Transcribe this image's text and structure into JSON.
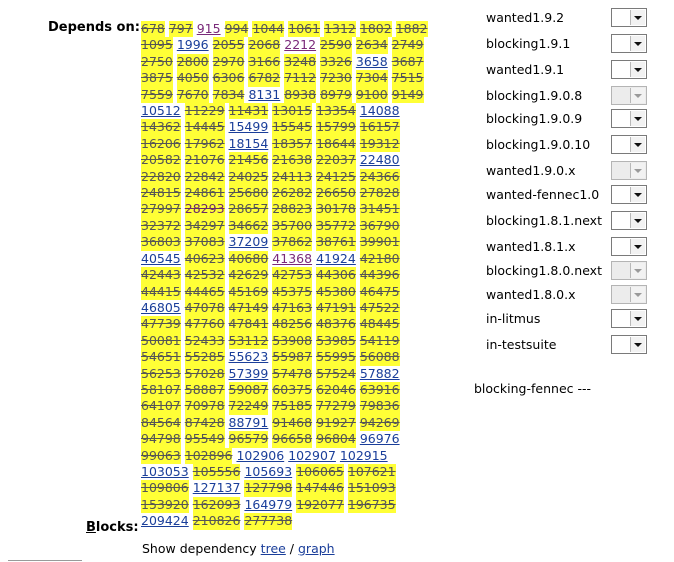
{
  "depends": {
    "label": "Depends on:",
    "bugs": [
      {
        "id": "678",
        "closed": true
      },
      {
        "id": "797",
        "closed": true
      },
      {
        "id": "915",
        "closed": false,
        "visited": true
      },
      {
        "id": "994",
        "closed": true
      },
      {
        "id": "1044",
        "closed": true
      },
      {
        "id": "1061",
        "closed": true
      },
      {
        "id": "1312",
        "closed": true
      },
      {
        "id": "1802",
        "closed": true
      },
      {
        "id": "1882",
        "closed": true
      },
      {
        "id": "1095",
        "closed": true
      },
      {
        "id": "1996",
        "closed": false
      },
      {
        "id": "2055",
        "closed": true
      },
      {
        "id": "2068",
        "closed": true
      },
      {
        "id": "2212",
        "closed": false,
        "visited": true
      },
      {
        "id": "2590",
        "closed": true
      },
      {
        "id": "2634",
        "closed": true
      },
      {
        "id": "2749",
        "closed": true
      },
      {
        "id": "2750",
        "closed": true
      },
      {
        "id": "2800",
        "closed": true
      },
      {
        "id": "2970",
        "closed": true
      },
      {
        "id": "3166",
        "closed": true
      },
      {
        "id": "3248",
        "closed": true
      },
      {
        "id": "3326",
        "closed": true
      },
      {
        "id": "3658",
        "closed": false
      },
      {
        "id": "3687",
        "closed": true
      },
      {
        "id": "3875",
        "closed": true
      },
      {
        "id": "4050",
        "closed": true
      },
      {
        "id": "6306",
        "closed": true
      },
      {
        "id": "6782",
        "closed": true
      },
      {
        "id": "7112",
        "closed": true
      },
      {
        "id": "7230",
        "closed": true
      },
      {
        "id": "7304",
        "closed": true
      },
      {
        "id": "7515",
        "closed": true
      },
      {
        "id": "7559",
        "closed": true
      },
      {
        "id": "7670",
        "closed": true
      },
      {
        "id": "7834",
        "closed": true
      },
      {
        "id": "8131",
        "closed": false
      },
      {
        "id": "8938",
        "closed": true
      },
      {
        "id": "8979",
        "closed": true
      },
      {
        "id": "9100",
        "closed": true
      },
      {
        "id": "9149",
        "closed": true
      },
      {
        "id": "10512",
        "closed": false
      },
      {
        "id": "11229",
        "closed": true
      },
      {
        "id": "11431",
        "closed": true
      },
      {
        "id": "13015",
        "closed": true
      },
      {
        "id": "13354",
        "closed": true
      },
      {
        "id": "14088",
        "closed": false
      },
      {
        "id": "14362",
        "closed": true
      },
      {
        "id": "14445",
        "closed": true
      },
      {
        "id": "15499",
        "closed": false
      },
      {
        "id": "15545",
        "closed": true
      },
      {
        "id": "15799",
        "closed": true
      },
      {
        "id": "16157",
        "closed": true
      },
      {
        "id": "16206",
        "closed": true
      },
      {
        "id": "17962",
        "closed": true
      },
      {
        "id": "18154",
        "closed": false
      },
      {
        "id": "18357",
        "closed": true
      },
      {
        "id": "18644",
        "closed": true
      },
      {
        "id": "19312",
        "closed": true
      },
      {
        "id": "20582",
        "closed": true
      },
      {
        "id": "21076",
        "closed": true
      },
      {
        "id": "21456",
        "closed": true
      },
      {
        "id": "21638",
        "closed": true
      },
      {
        "id": "22037",
        "closed": true
      },
      {
        "id": "22480",
        "closed": false
      },
      {
        "id": "22820",
        "closed": true
      },
      {
        "id": "22842",
        "closed": true
      },
      {
        "id": "24025",
        "closed": true
      },
      {
        "id": "24113",
        "closed": true
      },
      {
        "id": "24125",
        "closed": true
      },
      {
        "id": "24366",
        "closed": true
      },
      {
        "id": "24815",
        "closed": true
      },
      {
        "id": "24861",
        "closed": true
      },
      {
        "id": "25680",
        "closed": true
      },
      {
        "id": "26282",
        "closed": true
      },
      {
        "id": "26650",
        "closed": true
      },
      {
        "id": "27828",
        "closed": true
      },
      {
        "id": "27997",
        "closed": true
      },
      {
        "id": "28293",
        "closed": true,
        "visited": true
      },
      {
        "id": "28657",
        "closed": true
      },
      {
        "id": "28823",
        "closed": true
      },
      {
        "id": "30178",
        "closed": true
      },
      {
        "id": "31451",
        "closed": true
      },
      {
        "id": "32372",
        "closed": true
      },
      {
        "id": "34297",
        "closed": true
      },
      {
        "id": "34662",
        "closed": true
      },
      {
        "id": "35700",
        "closed": true
      },
      {
        "id": "35772",
        "closed": true
      },
      {
        "id": "36790",
        "closed": true
      },
      {
        "id": "36803",
        "closed": true
      },
      {
        "id": "37083",
        "closed": true
      },
      {
        "id": "37209",
        "closed": false
      },
      {
        "id": "37862",
        "closed": true
      },
      {
        "id": "38761",
        "closed": true
      },
      {
        "id": "39901",
        "closed": true
      },
      {
        "id": "40545",
        "closed": false
      },
      {
        "id": "40623",
        "closed": true
      },
      {
        "id": "40680",
        "closed": true
      },
      {
        "id": "41368",
        "closed": false,
        "visited": true
      },
      {
        "id": "41924",
        "closed": false
      },
      {
        "id": "42180",
        "closed": true
      },
      {
        "id": "42443",
        "closed": true
      },
      {
        "id": "42532",
        "closed": true
      },
      {
        "id": "42629",
        "closed": true
      },
      {
        "id": "42753",
        "closed": true
      },
      {
        "id": "44306",
        "closed": true
      },
      {
        "id": "44396",
        "closed": true
      },
      {
        "id": "44415",
        "closed": true
      },
      {
        "id": "44465",
        "closed": true
      },
      {
        "id": "45169",
        "closed": true
      },
      {
        "id": "45375",
        "closed": true
      },
      {
        "id": "45380",
        "closed": true
      },
      {
        "id": "46475",
        "closed": true
      },
      {
        "id": "46805",
        "closed": false
      },
      {
        "id": "47078",
        "closed": true
      },
      {
        "id": "47149",
        "closed": true
      },
      {
        "id": "47163",
        "closed": true
      },
      {
        "id": "47191",
        "closed": true
      },
      {
        "id": "47522",
        "closed": true
      },
      {
        "id": "47739",
        "closed": true
      },
      {
        "id": "47760",
        "closed": true
      },
      {
        "id": "47841",
        "closed": true
      },
      {
        "id": "48256",
        "closed": true
      },
      {
        "id": "48376",
        "closed": true
      },
      {
        "id": "48445",
        "closed": true
      },
      {
        "id": "50081",
        "closed": true
      },
      {
        "id": "52433",
        "closed": true
      },
      {
        "id": "53112",
        "closed": true
      },
      {
        "id": "53908",
        "closed": true
      },
      {
        "id": "53985",
        "closed": true
      },
      {
        "id": "54119",
        "closed": true
      },
      {
        "id": "54651",
        "closed": true
      },
      {
        "id": "55285",
        "closed": true
      },
      {
        "id": "55623",
        "closed": false
      },
      {
        "id": "55987",
        "closed": true
      },
      {
        "id": "55995",
        "closed": true
      },
      {
        "id": "56088",
        "closed": true
      },
      {
        "id": "56253",
        "closed": true
      },
      {
        "id": "57028",
        "closed": true
      },
      {
        "id": "57399",
        "closed": false
      },
      {
        "id": "57478",
        "closed": true
      },
      {
        "id": "57524",
        "closed": true
      },
      {
        "id": "57882",
        "closed": false
      },
      {
        "id": "58107",
        "closed": true
      },
      {
        "id": "58887",
        "closed": true
      },
      {
        "id": "59087",
        "closed": true
      },
      {
        "id": "60375",
        "closed": true
      },
      {
        "id": "62046",
        "closed": true
      },
      {
        "id": "63916",
        "closed": true
      },
      {
        "id": "64107",
        "closed": true
      },
      {
        "id": "70978",
        "closed": true
      },
      {
        "id": "72249",
        "closed": true
      },
      {
        "id": "75185",
        "closed": true
      },
      {
        "id": "77279",
        "closed": true
      },
      {
        "id": "79836",
        "closed": true
      },
      {
        "id": "84564",
        "closed": true
      },
      {
        "id": "87428",
        "closed": true
      },
      {
        "id": "88791",
        "closed": false
      },
      {
        "id": "91468",
        "closed": true
      },
      {
        "id": "91927",
        "closed": true
      },
      {
        "id": "94269",
        "closed": true
      },
      {
        "id": "94798",
        "closed": true
      },
      {
        "id": "95549",
        "closed": true
      },
      {
        "id": "96579",
        "closed": true
      },
      {
        "id": "96658",
        "closed": true
      },
      {
        "id": "96804",
        "closed": true
      },
      {
        "id": "96976",
        "closed": false
      },
      {
        "id": "99063",
        "closed": true
      },
      {
        "id": "102896",
        "closed": true
      },
      {
        "id": "102906",
        "closed": false
      },
      {
        "id": "102907",
        "closed": false
      },
      {
        "id": "102915",
        "closed": false
      },
      {
        "id": "103053",
        "closed": false
      },
      {
        "id": "105556",
        "closed": true
      },
      {
        "id": "105693",
        "closed": false
      },
      {
        "id": "106065",
        "closed": true
      },
      {
        "id": "107621",
        "closed": true
      },
      {
        "id": "109806",
        "closed": true
      },
      {
        "id": "127137",
        "closed": false
      },
      {
        "id": "127798",
        "closed": true
      },
      {
        "id": "147446",
        "closed": true
      },
      {
        "id": "151093",
        "closed": true
      },
      {
        "id": "153920",
        "closed": true
      },
      {
        "id": "162093",
        "closed": true
      },
      {
        "id": "164979",
        "closed": false
      },
      {
        "id": "192077",
        "closed": true
      },
      {
        "id": "196735",
        "closed": true
      },
      {
        "id": "209424",
        "closed": false
      },
      {
        "id": "210826",
        "closed": true
      },
      {
        "id": "277738",
        "closed": true
      }
    ]
  },
  "blocks": {
    "label_access": "B",
    "label_rest": "locks:"
  },
  "show_dependency": {
    "prefix": "Show dependency ",
    "tree": "tree",
    "separator": " / ",
    "graph": "graph"
  },
  "flags": [
    {
      "name": "wanted1.9.2",
      "disabled": false
    },
    {
      "name": "blocking1.9.1",
      "disabled": false
    },
    {
      "name": "wanted1.9.1",
      "disabled": false
    },
    {
      "name": "blocking1.9.0.8",
      "disabled": true
    },
    {
      "name": "blocking1.9.0.9",
      "disabled": false
    },
    {
      "name": "blocking1.9.0.10",
      "disabled": false
    },
    {
      "name": "wanted1.9.0.x",
      "disabled": true
    },
    {
      "name": "wanted-fennec1.0",
      "disabled": false
    },
    {
      "name": "blocking1.8.1.next",
      "disabled": false
    },
    {
      "name": "wanted1.8.1.x",
      "disabled": false
    },
    {
      "name": "blocking1.8.0.next",
      "disabled": true
    },
    {
      "name": "wanted1.8.0.x",
      "disabled": true
    },
    {
      "name": "in-litmus",
      "disabled": false
    },
    {
      "name": "in-testsuite",
      "disabled": false
    }
  ],
  "blocking_fennec": "blocking-fennec ---",
  "colors": {
    "closed_highlight": "#ffff36",
    "link": "#1a3e9a",
    "visited": "#7a2a7a"
  }
}
